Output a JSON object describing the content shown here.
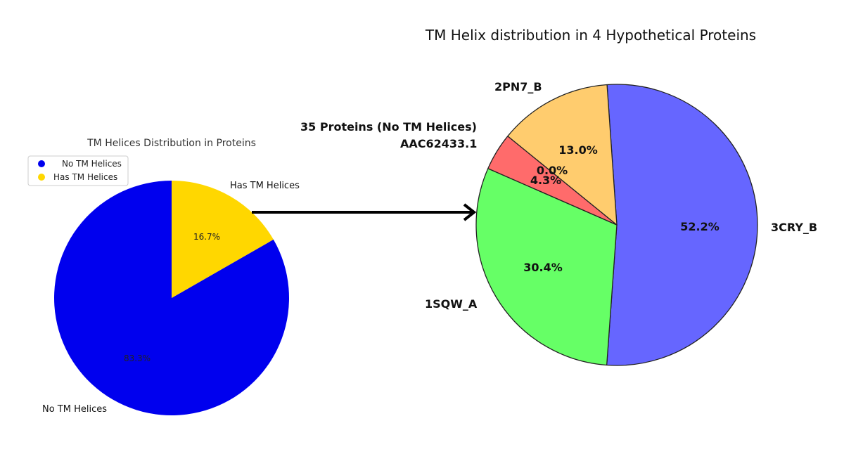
{
  "chart_data": [
    {
      "type": "pie",
      "title": "TM Helices Distribution in Proteins",
      "legend_position": "top-left",
      "slices": [
        {
          "label": "No TM Helices",
          "display_label": "No TM Helices",
          "value": 83.3,
          "pct_label": "83.3%",
          "color": "#0000ee"
        },
        {
          "label": "Has TM Helices",
          "display_label": "Has TM Helices",
          "value": 16.7,
          "pct_label": "16.7%",
          "color": "#ffd700"
        }
      ]
    },
    {
      "type": "pie",
      "title": "TM Helix distribution in 4 Hypothetical Proteins",
      "slices": [
        {
          "label": "3CRY_B",
          "value": 52.2,
          "pct_label": "52.2%",
          "color": "#6666ff"
        },
        {
          "label": "1SQW_A",
          "value": 30.4,
          "pct_label": "30.4%",
          "color": "#66ff66"
        },
        {
          "label": "AAC62433.1",
          "value": 4.3,
          "pct_label": "4.3%",
          "color": "#ff6b6b"
        },
        {
          "label": "35 Proteins (No TM Helices)",
          "value": 0.0,
          "pct_label": "0.0%",
          "color": "#ff6b6b"
        },
        {
          "label": "2PN7_B",
          "value": 13.0,
          "pct_label": "13.0%",
          "color": "#ffcc6e"
        }
      ]
    }
  ]
}
